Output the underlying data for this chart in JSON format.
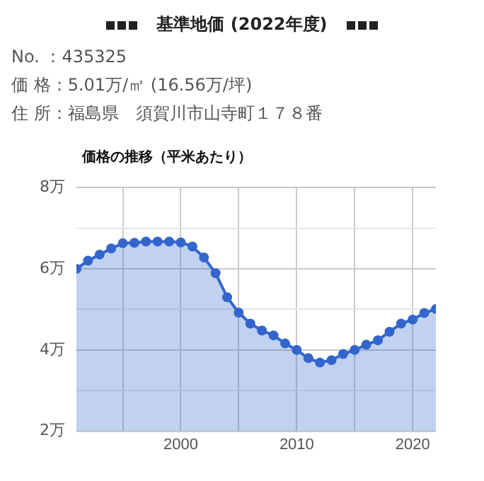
{
  "chart_data": {
    "type": "area",
    "title": "基準地価 (2022年度)",
    "subtitle": "価格の推移（平米あたり）",
    "annotations": [
      "No. ：435325",
      "価 格：5.01万/㎡ (16.56万/坪)",
      "住 所：福島県　須賀川市山寺町１７８番"
    ],
    "x": [
      1991,
      1992,
      1993,
      1994,
      1995,
      1996,
      1997,
      1998,
      1999,
      2000,
      2001,
      2002,
      2003,
      2004,
      2005,
      2006,
      2007,
      2008,
      2009,
      2010,
      2011,
      2012,
      2013,
      2014,
      2015,
      2016,
      2017,
      2018,
      2019,
      2020,
      2021,
      2022
    ],
    "series": [
      {
        "color": "#3366cc",
        "values": [
          6.0,
          6.2,
          6.35,
          6.5,
          6.63,
          6.64,
          6.67,
          6.67,
          6.67,
          6.65,
          6.55,
          6.28,
          5.89,
          5.3,
          4.92,
          4.65,
          4.48,
          4.36,
          4.16,
          4.0,
          3.8,
          3.69,
          3.75,
          3.9,
          4.0,
          4.13,
          4.24,
          4.45,
          4.65,
          4.75,
          4.91,
          5.01
        ]
      }
    ],
    "xlim": [
      1991,
      2022
    ],
    "xticks": [
      {
        "value": 1995,
        "label": null
      },
      {
        "value": 2000,
        "label": "2000"
      },
      {
        "value": 2005,
        "label": null
      },
      {
        "value": 2010,
        "label": "2010"
      },
      {
        "value": 2015,
        "label": null
      },
      {
        "value": 2020,
        "label": "2020"
      }
    ],
    "ylim": [
      2,
      8
    ],
    "yticks": [
      {
        "value": 2,
        "label": "2万"
      },
      {
        "value": 3,
        "label": null
      },
      {
        "value": 4,
        "label": "4万"
      },
      {
        "value": 5,
        "label": null
      },
      {
        "value": 6,
        "label": "6万"
      },
      {
        "value": 7,
        "label": null
      },
      {
        "value": 8,
        "label": "8万"
      }
    ],
    "grid": true,
    "marker": "circle",
    "line_style": "solid",
    "legend": false
  }
}
